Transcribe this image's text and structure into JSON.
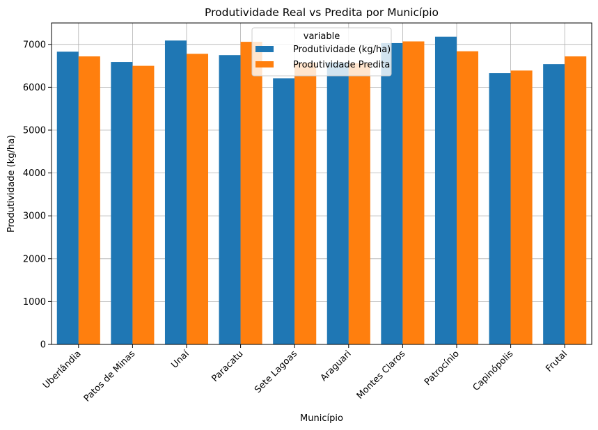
{
  "chart_data": {
    "type": "bar",
    "title": "Produtividade Real vs Predita por Município",
    "xlabel": "Município",
    "ylabel": "Produtividade (kg/ha)",
    "categories": [
      "Uberlândia",
      "Patos de Minas",
      "Unaí",
      "Paracatu",
      "Sete Lagoas",
      "Araguari",
      "Montes Claros",
      "Patrocínio",
      "Capinópolis",
      "Frutal"
    ],
    "series": [
      {
        "name": "Produtividade (kg/ha)",
        "color": "#1f77b4",
        "values": [
          6830,
          6590,
          7090,
          6750,
          6210,
          6580,
          7030,
          7180,
          6330,
          6540
        ]
      },
      {
        "name": "Produtividade Predita",
        "color": "#ff7f0e",
        "values": [
          6720,
          6500,
          6780,
          7060,
          6570,
          6560,
          7070,
          6840,
          6390,
          6720
        ]
      }
    ],
    "ylim": [
      0,
      7500
    ],
    "yticks": [
      0,
      1000,
      2000,
      3000,
      4000,
      5000,
      6000,
      7000
    ],
    "grid": true,
    "legend": {
      "title": "variable",
      "placement": "top-center"
    }
  }
}
